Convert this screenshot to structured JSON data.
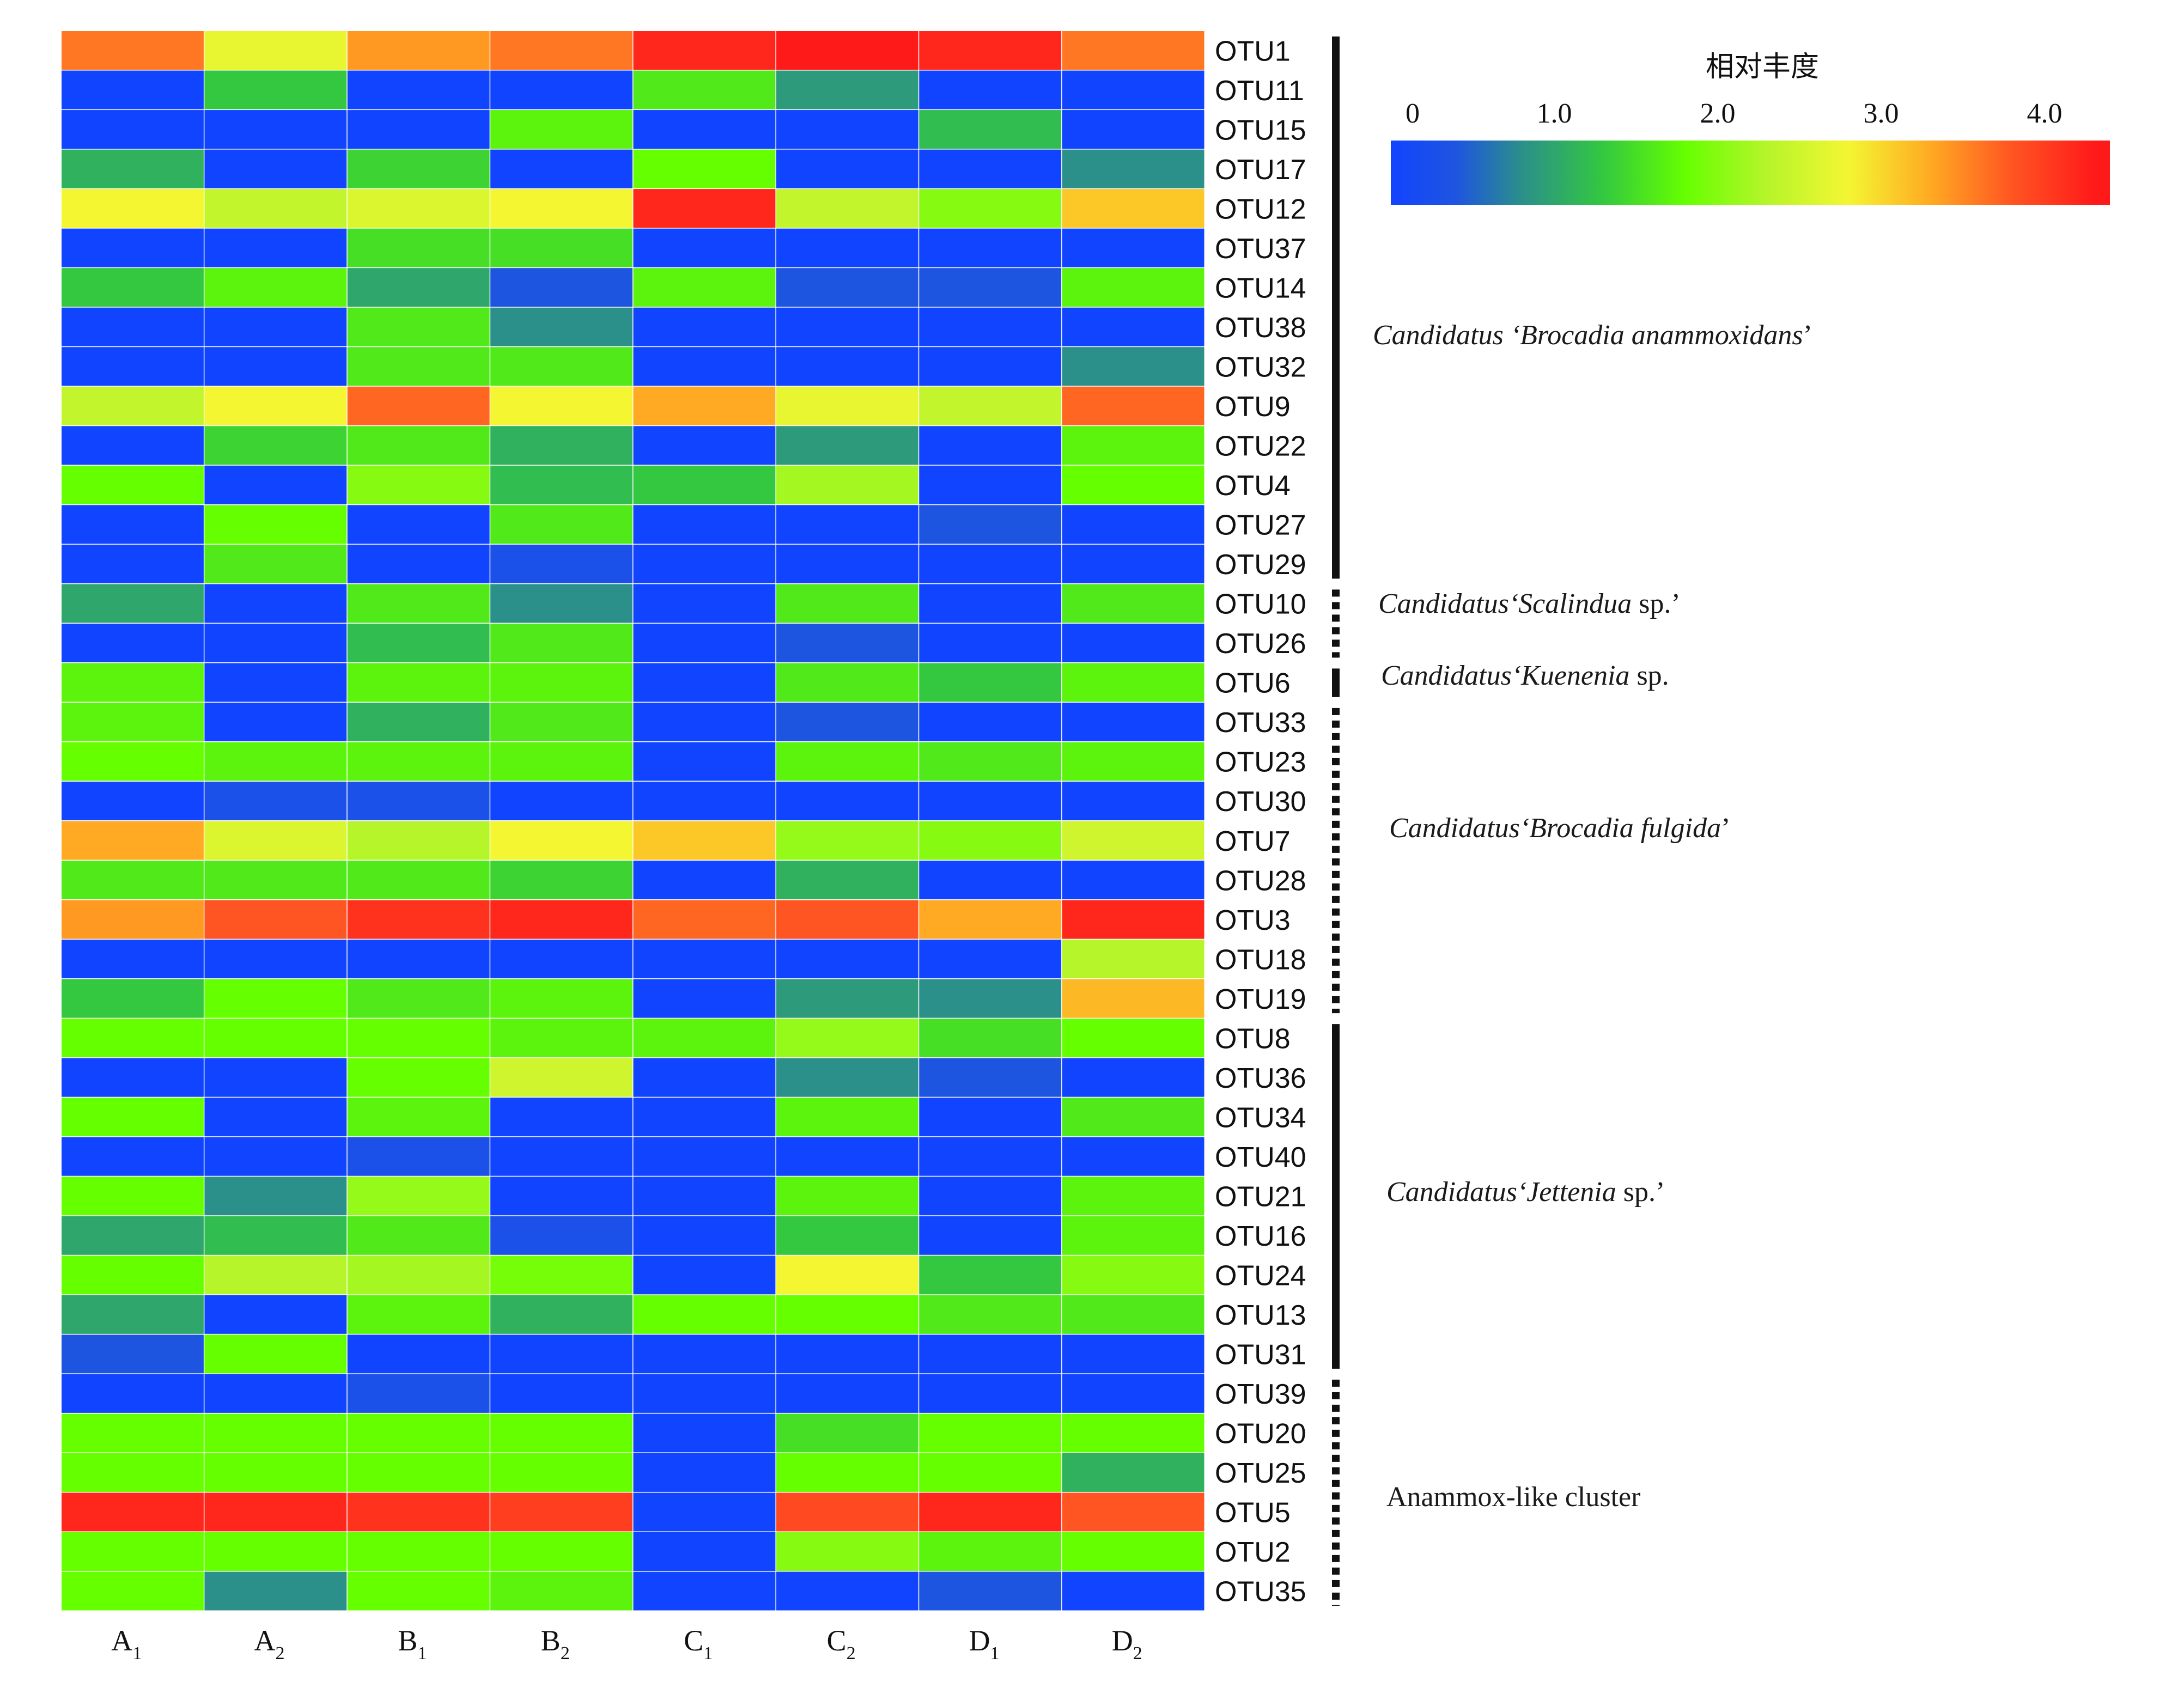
{
  "chart_data": {
    "type": "heatmap",
    "title": "",
    "xlabel": "",
    "ylabel": "",
    "columns": [
      {
        "base": "A",
        "sub": "1"
      },
      {
        "base": "A",
        "sub": "2"
      },
      {
        "base": "B",
        "sub": "1"
      },
      {
        "base": "B",
        "sub": "2"
      },
      {
        "base": "C",
        "sub": "1"
      },
      {
        "base": "C",
        "sub": "2"
      },
      {
        "base": "D",
        "sub": "1"
      },
      {
        "base": "D",
        "sub": "2"
      }
    ],
    "rows": [
      "OTU1",
      "OTU11",
      "OTU15",
      "OTU17",
      "OTU12",
      "OTU37",
      "OTU14",
      "OTU38",
      "OTU32",
      "OTU9",
      "OTU22",
      "OTU4",
      "OTU27",
      "OTU29",
      "OTU10",
      "OTU26",
      "OTU6",
      "OTU33",
      "OTU23",
      "OTU30",
      "OTU7",
      "OTU28",
      "OTU3",
      "OTU18",
      "OTU19",
      "OTU8",
      "OTU36",
      "OTU34",
      "OTU40",
      "OTU21",
      "OTU16",
      "OTU24",
      "OTU13",
      "OTU31",
      "OTU39",
      "OTU20",
      "OTU25",
      "OTU5",
      "OTU2",
      "OTU35"
    ],
    "values": [
      [
        3.6,
        2.7,
        3.4,
        3.6,
        4.2,
        4.3,
        4.2,
        3.6
      ],
      [
        0.0,
        1.3,
        0.0,
        0.0,
        1.6,
        0.9,
        0.0,
        0.0
      ],
      [
        0.0,
        0.0,
        0.0,
        1.7,
        0.0,
        0.0,
        1.2,
        0.0
      ],
      [
        1.1,
        0.0,
        1.4,
        0.0,
        1.8,
        0.0,
        0.0,
        0.8
      ],
      [
        2.8,
        2.4,
        2.6,
        2.8,
        4.2,
        2.4,
        2.0,
        3.1
      ],
      [
        0.0,
        0.0,
        1.5,
        1.5,
        0.0,
        0.0,
        0.0,
        0.0
      ],
      [
        1.3,
        1.7,
        1.0,
        0.4,
        1.7,
        0.4,
        0.4,
        1.7
      ],
      [
        0.0,
        0.0,
        1.6,
        0.8,
        0.0,
        0.0,
        0.0,
        0.0
      ],
      [
        0.0,
        0.0,
        1.6,
        1.6,
        0.0,
        0.0,
        0.0,
        0.8
      ],
      [
        2.4,
        2.8,
        3.7,
        2.8,
        3.3,
        2.7,
        2.4,
        3.7
      ],
      [
        0.0,
        1.4,
        1.6,
        1.1,
        0.0,
        0.9,
        0.0,
        1.7
      ],
      [
        1.8,
        0.0,
        2.0,
        1.2,
        1.3,
        2.2,
        0.0,
        1.8
      ],
      [
        0.0,
        1.8,
        0.0,
        1.6,
        0.0,
        0.0,
        0.4,
        0.0
      ],
      [
        0.0,
        1.6,
        0.0,
        0.3,
        0.0,
        0.0,
        0.0,
        0.0
      ],
      [
        1.0,
        0.0,
        1.6,
        0.8,
        0.0,
        1.6,
        0.0,
        1.6
      ],
      [
        0.0,
        0.0,
        1.2,
        1.6,
        0.0,
        0.4,
        0.0,
        0.0
      ],
      [
        1.7,
        0.0,
        1.7,
        1.7,
        0.0,
        1.6,
        1.3,
        1.7
      ],
      [
        1.7,
        0.0,
        1.1,
        1.6,
        0.0,
        0.4,
        0.0,
        0.0
      ],
      [
        1.8,
        1.7,
        1.7,
        1.7,
        0.0,
        1.7,
        1.6,
        1.7
      ],
      [
        0.0,
        0.3,
        0.3,
        0.0,
        0.0,
        0.0,
        0.0,
        0.0
      ],
      [
        3.3,
        2.6,
        2.3,
        2.8,
        3.1,
        2.1,
        2.0,
        2.5
      ],
      [
        1.6,
        1.6,
        1.6,
        1.4,
        0.0,
        1.1,
        0.0,
        0.0
      ],
      [
        3.4,
        3.8,
        4.1,
        4.2,
        3.7,
        3.8,
        3.3,
        4.2
      ],
      [
        0.0,
        0.0,
        0.0,
        0.0,
        0.0,
        0.0,
        0.0,
        2.3
      ],
      [
        1.3,
        1.8,
        1.6,
        1.7,
        0.0,
        0.9,
        0.8,
        3.2
      ],
      [
        1.8,
        1.8,
        1.8,
        1.7,
        1.7,
        2.1,
        1.5,
        1.8
      ],
      [
        0.0,
        0.0,
        1.8,
        2.5,
        0.0,
        0.8,
        0.4,
        0.0
      ],
      [
        1.8,
        0.0,
        1.7,
        0.0,
        0.0,
        1.7,
        0.0,
        1.6
      ],
      [
        0.0,
        0.0,
        0.3,
        0.0,
        0.0,
        0.0,
        0.0,
        0.0
      ],
      [
        1.8,
        0.8,
        2.1,
        0.0,
        0.0,
        1.7,
        0.0,
        1.7
      ],
      [
        1.0,
        1.2,
        1.6,
        0.3,
        0.0,
        1.3,
        0.0,
        1.7
      ],
      [
        1.8,
        2.3,
        2.2,
        1.9,
        0.0,
        2.8,
        1.3,
        2.0
      ],
      [
        1.0,
        0.0,
        1.7,
        1.1,
        1.8,
        1.8,
        1.6,
        1.6
      ],
      [
        0.4,
        1.8,
        0.0,
        0.0,
        0.0,
        0.0,
        0.0,
        0.0
      ],
      [
        0.0,
        0.0,
        0.3,
        0.0,
        0.0,
        0.0,
        0.0,
        0.0
      ],
      [
        1.8,
        1.8,
        1.8,
        1.8,
        0.0,
        1.5,
        1.8,
        1.8
      ],
      [
        1.8,
        1.8,
        1.8,
        1.8,
        0.0,
        1.8,
        1.8,
        1.1
      ],
      [
        4.2,
        4.2,
        4.1,
        4.0,
        0.0,
        3.9,
        4.2,
        3.8
      ],
      [
        1.8,
        1.8,
        1.8,
        1.8,
        0.0,
        2.0,
        1.7,
        1.8
      ],
      [
        1.8,
        0.8,
        1.8,
        1.7,
        0.0,
        0.0,
        0.4,
        0.0
      ]
    ],
    "colorbar": {
      "title": "相对丰度",
      "ticks": [
        {
          "label": "0",
          "value": 0.0
        },
        {
          "label": "1.0",
          "value": 1.0
        },
        {
          "label": "2.0",
          "value": 2.0
        },
        {
          "label": "3.0",
          "value": 3.0
        },
        {
          "label": "4.0",
          "value": 4.0
        }
      ],
      "range": [
        0.0,
        4.4
      ],
      "stops": [
        {
          "value": 0.0,
          "color": "#1144ff"
        },
        {
          "value": 0.4,
          "color": "#1e55e0"
        },
        {
          "value": 0.8,
          "color": "#2b8f8a"
        },
        {
          "value": 1.3,
          "color": "#33c840"
        },
        {
          "value": 1.8,
          "color": "#66ff00"
        },
        {
          "value": 2.3,
          "color": "#b5f52a"
        },
        {
          "value": 2.8,
          "color": "#f4f632"
        },
        {
          "value": 3.3,
          "color": "#ffaa22"
        },
        {
          "value": 3.8,
          "color": "#ff5522"
        },
        {
          "value": 4.3,
          "color": "#ff1a1a"
        }
      ]
    },
    "groups": [
      {
        "label_prefix": "Candidatus ‘",
        "label_name": "Brocadia anammoxidans",
        "label_suffix": "’",
        "from": 0,
        "to": 13,
        "line": "solid"
      },
      {
        "label_prefix": "Candidatus‘",
        "label_name": "Scalindua",
        "label_suffix": " sp.’",
        "from": 14,
        "to": 15,
        "line": "dotted"
      },
      {
        "label_prefix": "Candidatus‘",
        "label_name": "Kuenenia",
        "label_suffix": " sp.",
        "from": 16,
        "to": 16,
        "line": "solid"
      },
      {
        "label_prefix": "Candidatus‘",
        "label_name": "Brocadia fulgida",
        "label_suffix": "’",
        "from": 17,
        "to": 24,
        "line": "dotted"
      },
      {
        "label_prefix": "Candidatus‘",
        "label_name": "Jettenia",
        "label_suffix": " sp.’",
        "from": 25,
        "to": 33,
        "line": "solid"
      },
      {
        "label_prefix": "",
        "label_name": "Anammox-like cluster",
        "label_suffix": "",
        "from": 34,
        "to": 39,
        "line": "dotted",
        "plain": true
      }
    ]
  }
}
